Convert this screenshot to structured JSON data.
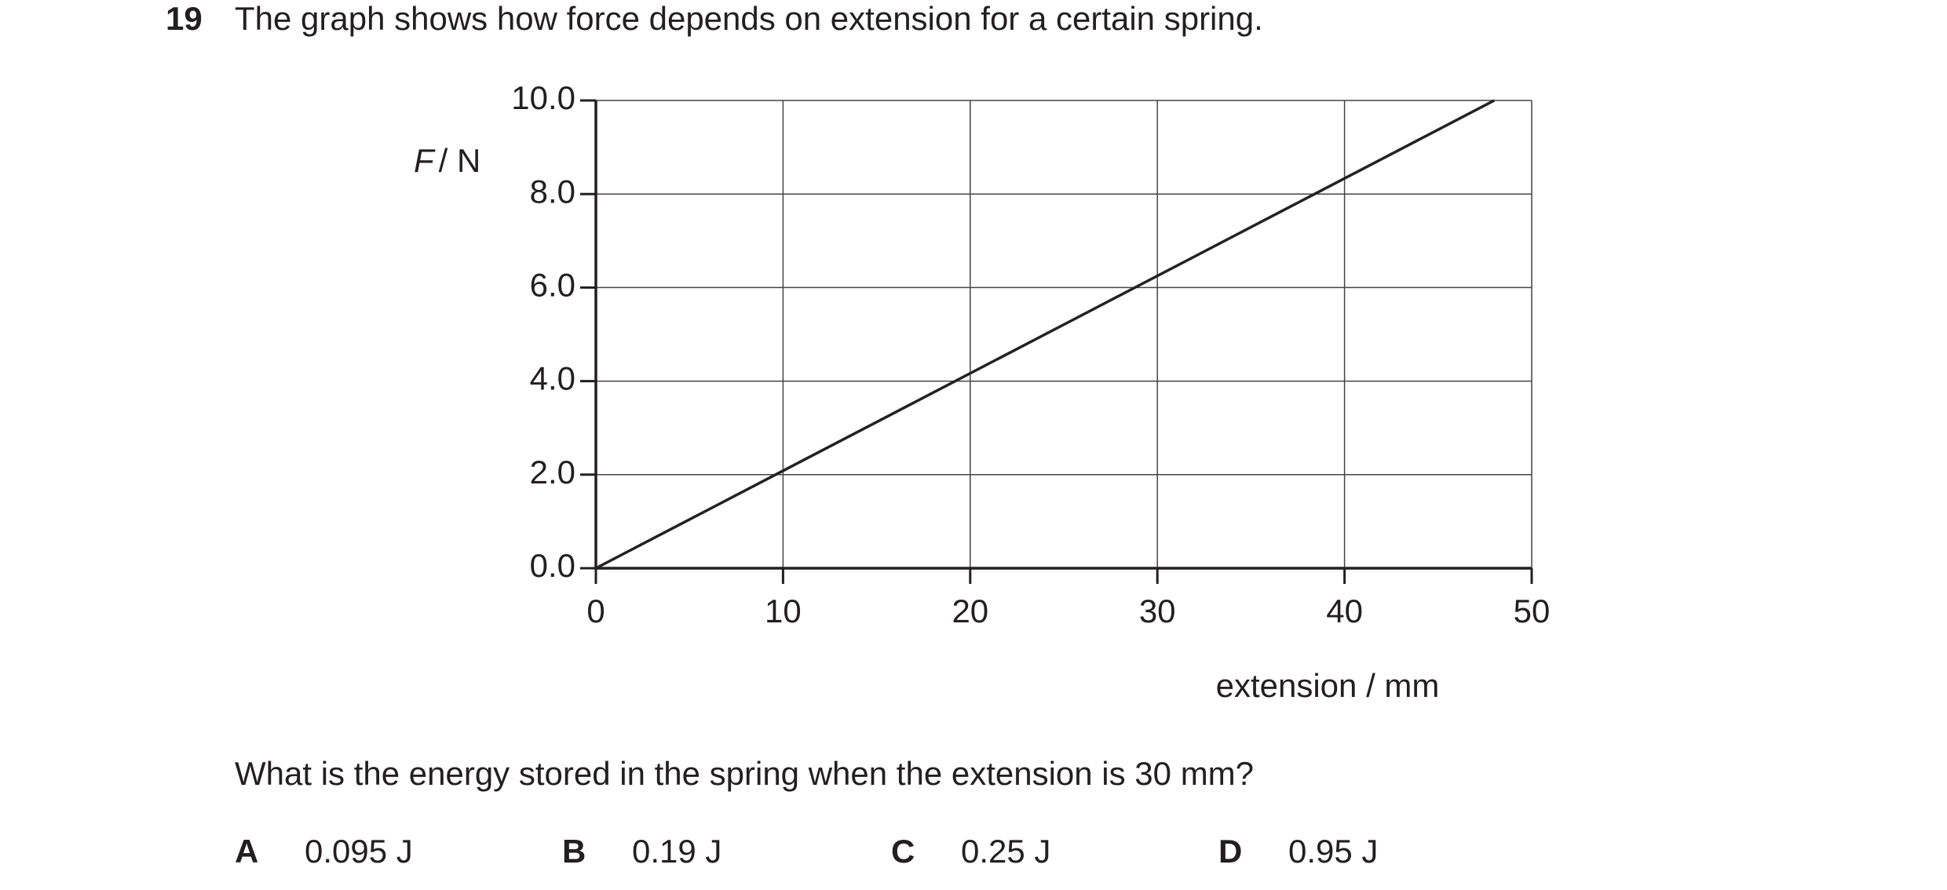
{
  "question": {
    "number": "19",
    "text": "The graph shows how force depends on extension for a certain spring.",
    "prompt": "What is the energy stored in the spring when the extension is 30 mm?",
    "options": [
      {
        "letter": "A",
        "text": "0.095 J"
      },
      {
        "letter": "B",
        "text": "0.19 J"
      },
      {
        "letter": "C",
        "text": "0.25 J"
      },
      {
        "letter": "D",
        "text": "0.95 J"
      }
    ]
  },
  "chart_data": {
    "type": "line",
    "ylabel_symbol": "F",
    "ylabel_unit": "/ N",
    "xlabel": "extension / mm",
    "x": [
      0,
      48
    ],
    "series": [
      {
        "color": "#222222",
        "values": [
          0,
          10
        ]
      }
    ],
    "xlim": [
      0,
      50
    ],
    "xticks": [
      0,
      10,
      20,
      30,
      40,
      50
    ],
    "ylim": [
      0,
      10
    ],
    "yticks": [
      {
        "value": 0,
        "label": "0.0"
      },
      {
        "value": 2,
        "label": "2.0"
      },
      {
        "value": 4,
        "label": "4.0"
      },
      {
        "value": 6,
        "label": "6.0"
      },
      {
        "value": 8,
        "label": "8.0"
      },
      {
        "value": 10,
        "label": "10.0"
      }
    ],
    "grid": true
  }
}
